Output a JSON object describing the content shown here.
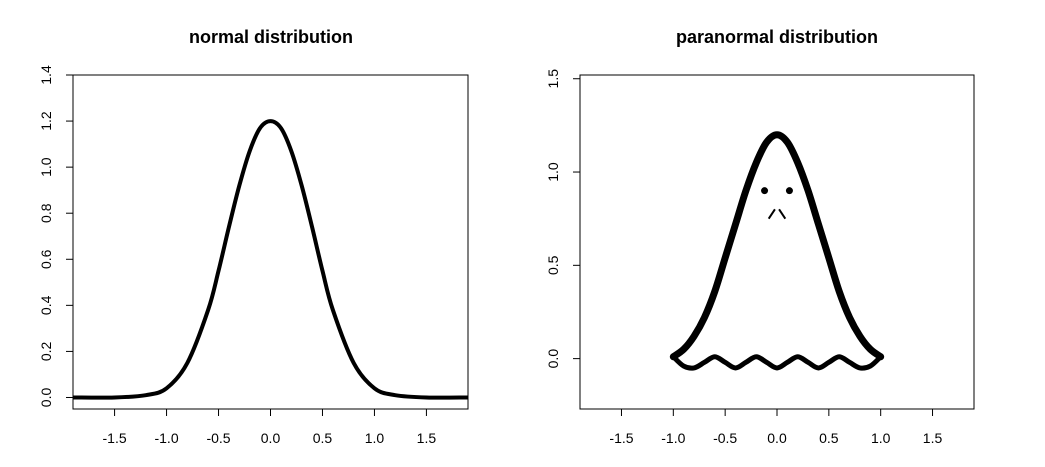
{
  "chart_data": [
    {
      "type": "line",
      "title": "normal distribution",
      "xlabel": "",
      "ylabel": "",
      "xlim": [
        -1.9,
        1.9
      ],
      "ylim": [
        -0.05,
        1.4
      ],
      "x_ticks": [
        -1.5,
        -1.0,
        -0.5,
        0.0,
        0.5,
        1.0,
        1.5
      ],
      "x_tick_labels": [
        "-1.5",
        "-1.0",
        "-0.5",
        "0.0",
        "0.5",
        "1.0",
        "1.5"
      ],
      "y_ticks": [
        0.0,
        0.2,
        0.4,
        0.6,
        0.8,
        1.0,
        1.2,
        1.4
      ],
      "y_tick_labels": [
        "0.0",
        "0.2",
        "0.4",
        "0.6",
        "0.8",
        "1.0",
        "1.2",
        "1.4"
      ],
      "grid": false,
      "series": [
        {
          "x": [
            -1.9,
            -1.5,
            -1.2,
            -1.0,
            -0.8,
            -0.6,
            -0.5,
            -0.4,
            -0.3,
            -0.2,
            -0.1,
            0.0,
            0.1,
            0.2,
            0.3,
            0.4,
            0.5,
            0.6,
            0.8,
            1.0,
            1.2,
            1.5,
            1.9
          ],
          "y": [
            0.0,
            0.0,
            0.01,
            0.04,
            0.15,
            0.38,
            0.55,
            0.74,
            0.92,
            1.07,
            1.17,
            1.2,
            1.17,
            1.07,
            0.92,
            0.74,
            0.55,
            0.38,
            0.15,
            0.04,
            0.01,
            0.0,
            0.0
          ]
        }
      ]
    },
    {
      "type": "line",
      "title": "paranormal distribution",
      "xlabel": "",
      "ylabel": "",
      "xlim": [
        -1.9,
        1.9
      ],
      "ylim": [
        -0.27,
        1.52
      ],
      "x_ticks": [
        -1.5,
        -1.0,
        -0.5,
        0.0,
        0.5,
        1.0,
        1.5
      ],
      "x_tick_labels": [
        "-1.5",
        "-1.0",
        "-0.5",
        "0.0",
        "0.5",
        "1.0",
        "1.5"
      ],
      "y_ticks": [
        0.0,
        0.5,
        1.0,
        1.5
      ],
      "y_tick_labels": [
        "0.0",
        "0.5",
        "1.0",
        "1.5"
      ],
      "grid": false,
      "series": [
        {
          "x": [
            -1.0,
            -0.9,
            -0.8,
            -0.7,
            -0.6,
            -0.5,
            -0.4,
            -0.3,
            -0.2,
            -0.1,
            0.0,
            0.1,
            0.2,
            0.3,
            0.4,
            0.5,
            0.6,
            0.7,
            0.8,
            0.9,
            1.0
          ],
          "y": [
            0.01,
            0.05,
            0.12,
            0.22,
            0.36,
            0.54,
            0.72,
            0.9,
            1.05,
            1.16,
            1.2,
            1.16,
            1.05,
            0.9,
            0.72,
            0.54,
            0.36,
            0.22,
            0.12,
            0.05,
            0.01
          ]
        },
        {
          "x": [
            -1.0,
            -0.9,
            -0.8,
            -0.7,
            -0.6,
            -0.5,
            -0.4,
            -0.3,
            -0.2,
            -0.1,
            0.0,
            0.1,
            0.2,
            0.3,
            0.4,
            0.5,
            0.6,
            0.7,
            0.8,
            0.9,
            1.0
          ],
          "y": [
            0.01,
            -0.04,
            -0.05,
            -0.02,
            0.01,
            -0.02,
            -0.05,
            -0.02,
            0.01,
            -0.02,
            -0.05,
            -0.02,
            0.01,
            -0.02,
            -0.05,
            -0.02,
            0.01,
            -0.02,
            -0.05,
            -0.04,
            0.01
          ]
        },
        {
          "x": [
            -0.12,
            0.12
          ],
          "y": [
            0.9,
            0.9
          ]
        },
        {
          "x": [
            -0.08,
            -0.02
          ],
          "y": [
            0.75,
            0.8
          ]
        },
        {
          "x": [
            0.02,
            0.08
          ],
          "y": [
            0.8,
            0.75
          ]
        }
      ]
    }
  ]
}
